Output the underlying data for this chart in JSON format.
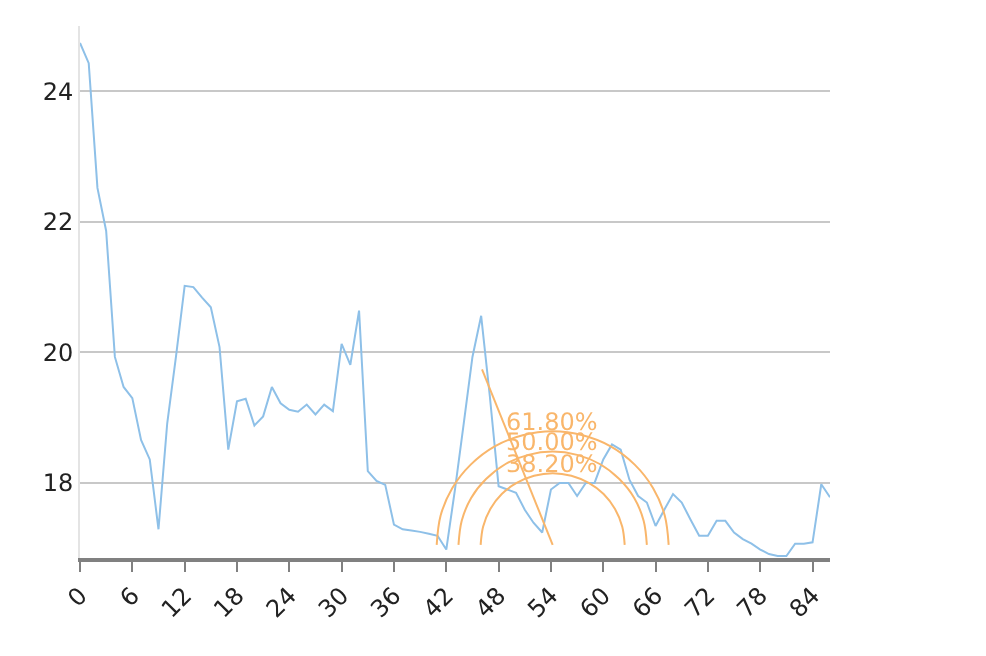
{
  "chart_data": {
    "type": "line",
    "x": [
      0,
      1,
      2,
      3,
      4,
      5,
      6,
      7,
      8,
      9,
      10,
      11,
      12,
      13,
      14,
      15,
      16,
      17,
      18,
      19,
      20,
      21,
      22,
      23,
      24,
      25,
      26,
      27,
      28,
      29,
      30,
      31,
      32,
      33,
      34,
      35,
      36,
      37,
      38,
      39,
      40,
      41,
      42,
      43,
      44,
      45,
      46,
      47,
      48,
      49,
      50,
      51,
      52,
      53,
      54,
      55,
      56,
      57,
      58,
      59,
      60,
      61,
      62,
      63,
      64,
      65,
      66,
      67,
      68,
      69,
      70,
      71,
      72,
      73,
      74,
      75,
      76,
      77,
      78,
      79,
      80,
      81,
      82,
      83,
      84,
      85,
      86
    ],
    "series": [
      {
        "color": "#8ec0e8",
        "values": [
          24.74,
          24.43,
          22.52,
          21.86,
          19.93,
          19.47,
          19.3,
          18.66,
          18.36,
          17.29,
          18.91,
          19.93,
          21.02,
          21.0,
          20.84,
          20.69,
          20.08,
          18.51,
          19.25,
          19.29,
          18.88,
          19.02,
          19.47,
          19.22,
          19.12,
          19.09,
          19.2,
          19.05,
          19.2,
          19.1,
          20.13,
          19.81,
          20.64,
          18.18,
          18.03,
          17.97,
          17.36,
          17.29,
          17.27,
          17.25,
          17.22,
          17.19,
          16.98,
          17.9,
          18.91,
          19.93,
          20.56,
          19.32,
          17.95,
          17.9,
          17.85,
          17.59,
          17.39,
          17.24,
          17.9,
          18.0,
          18.0,
          17.8,
          18.0,
          18.0,
          18.36,
          18.59,
          18.51,
          18.05,
          17.8,
          17.7,
          17.34,
          17.59,
          17.83,
          17.7,
          17.44,
          17.19,
          17.19,
          17.42,
          17.42,
          17.24,
          17.14,
          17.07,
          16.98,
          16.91,
          16.88,
          16.88,
          17.07,
          17.07,
          17.09,
          17.98,
          17.78
        ]
      },
      {
        "type": "line",
        "color": "#f9b66b",
        "x": [
          46.1,
          54.2
        ],
        "values": [
          19.74,
          17.05
        ]
      },
      {
        "type": "line",
        "color": "#f9b66b",
        "x": [
          67.5,
          67.05,
          65.72,
          63.6,
          60.85,
          57.64,
          54.2,
          50.76,
          47.55,
          44.8,
          42.68,
          41.35,
          40.9
        ],
        "values": [
          17.05,
          17.5,
          17.92,
          18.28,
          18.56,
          18.73,
          18.79,
          18.73,
          18.56,
          18.28,
          17.92,
          17.5,
          17.05
        ]
      },
      {
        "type": "line",
        "color": "#f9b66b",
        "x": [
          65.0,
          64.63,
          63.55,
          61.84,
          59.6,
          57.0,
          54.2,
          51.4,
          48.8,
          46.56,
          44.85,
          43.77,
          43.4
        ],
        "values": [
          17.05,
          17.42,
          17.77,
          18.06,
          18.29,
          18.43,
          18.48,
          18.43,
          18.29,
          18.06,
          17.77,
          17.42,
          17.05
        ]
      },
      {
        "type": "line",
        "color": "#f9b66b",
        "x": [
          62.46,
          62.18,
          61.35,
          60.04,
          58.33,
          56.34,
          54.2,
          52.06,
          50.07,
          48.36,
          47.05,
          46.22,
          45.94
        ],
        "values": [
          17.05,
          17.33,
          17.6,
          17.83,
          18.0,
          18.11,
          18.15,
          18.11,
          18.0,
          17.83,
          17.6,
          17.33,
          17.05
        ]
      }
    ],
    "annotations": [
      "61.80%",
      "50.00%",
      "38.20%"
    ],
    "xlim": [
      0,
      86
    ],
    "xticks": [
      0,
      6,
      12,
      18,
      24,
      30,
      36,
      42,
      48,
      54,
      60,
      66,
      72,
      78,
      84
    ],
    "ylim": [
      16.85,
      25
    ],
    "yticks": [
      18,
      20,
      22,
      24
    ],
    "grid": "y"
  }
}
